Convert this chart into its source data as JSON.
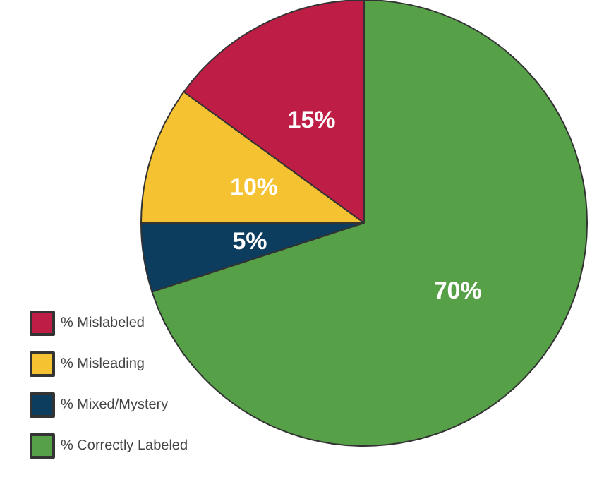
{
  "chart_data": {
    "type": "pie",
    "categories": [
      "% Mislabeled",
      "% Misleading",
      "% Mixed/Mystery",
      "% Correctly Labeled"
    ],
    "values": [
      15,
      10,
      5,
      70
    ],
    "colors": [
      "#be1e45",
      "#f5c232",
      "#0d3d5e",
      "#56a047"
    ],
    "value_labels": [
      "15%",
      "10%",
      "5%",
      "70%"
    ],
    "legend": "bottom left"
  }
}
